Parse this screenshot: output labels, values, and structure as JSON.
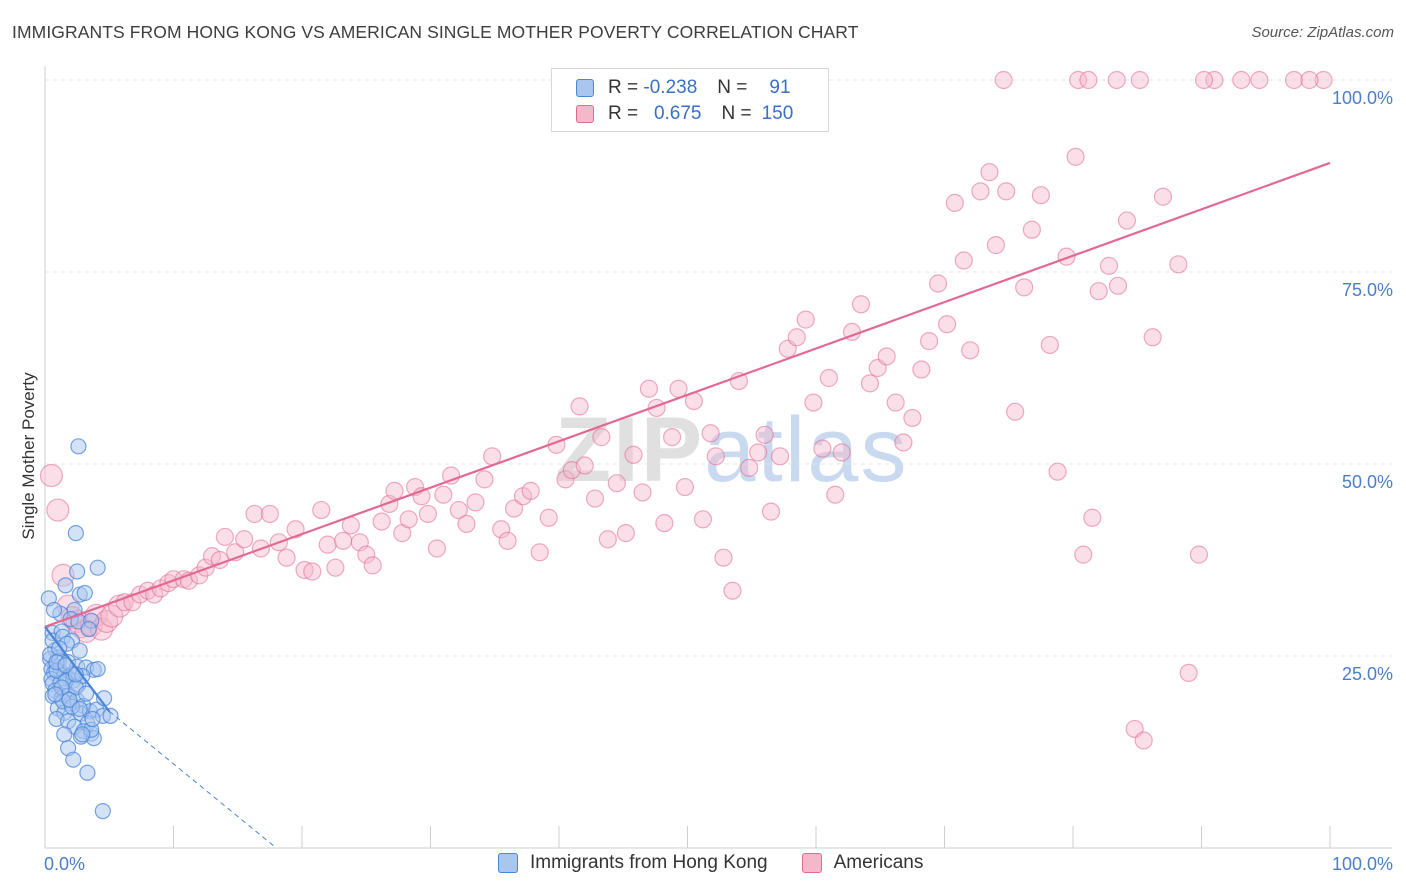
{
  "header": {
    "title": "IMMIGRANTS FROM HONG KONG VS AMERICAN SINGLE MOTHER POVERTY CORRELATION CHART",
    "source": "Source: ZipAtlas.com"
  },
  "watermark": {
    "zip": "ZIP",
    "atlas": "atlas"
  },
  "legend": {
    "rows": [
      {
        "r_label": "R =",
        "r_value": "-0.238",
        "n_label": "N =",
        "n_value": "91"
      },
      {
        "r_label": "R =",
        "r_value": "0.675",
        "n_label": "N =",
        "n_value": "150"
      }
    ]
  },
  "bottom_legend": [
    "Immigrants from Hong Kong",
    "Americans"
  ],
  "colors": {
    "blue": "#4a85d8",
    "blue_fill": "#a9c6ef",
    "pink": "#e26a92",
    "pink_fill": "#f5b8cb",
    "grid": "#e4e4e4",
    "tick_text": "#4a7ec9"
  },
  "chart_data": {
    "type": "scatter",
    "title": "IMMIGRANTS FROM HONG KONG VS AMERICAN SINGLE MOTHER POVERTY CORRELATION CHART",
    "xlabel": "",
    "ylabel": "Single Mother Poverty",
    "xlim": [
      0,
      100
    ],
    "ylim": [
      0,
      100
    ],
    "x_tick_labels": [
      "0.0%",
      "100.0%"
    ],
    "y_tick_labels": [
      "25.0%",
      "50.0%",
      "75.0%",
      "100.0%"
    ],
    "y_ticks": [
      25,
      50,
      75,
      100
    ],
    "grid": "horizontal dashed",
    "legend_position": "top-center",
    "series": [
      {
        "name": "Immigrants from Hong Kong",
        "r": -0.238,
        "n": 91,
        "trend": {
          "x": [
            0,
            5
          ],
          "y": [
            28.8,
            17.8
          ],
          "extended_to": [
            18,
            0
          ]
        },
        "points": [
          [
            0.3,
            32.5
          ],
          [
            0.6,
            28
          ],
          [
            0.8,
            25.8
          ],
          [
            1,
            24.8
          ],
          [
            0.4,
            24.6
          ],
          [
            0.8,
            23.6
          ],
          [
            0.5,
            23.3
          ],
          [
            1.2,
            23
          ],
          [
            0.7,
            22.8
          ],
          [
            1.5,
            22.5
          ],
          [
            1.8,
            22.2
          ],
          [
            0.5,
            22
          ],
          [
            0.6,
            21.4
          ],
          [
            1.2,
            21.5
          ],
          [
            2.2,
            21.8
          ],
          [
            2.6,
            21.3
          ],
          [
            0.8,
            20.5
          ],
          [
            1.5,
            20.2
          ],
          [
            0.6,
            19.8
          ],
          [
            1.3,
            19.5
          ],
          [
            1.8,
            19.8
          ],
          [
            2,
            18.8
          ],
          [
            2.5,
            19.2
          ],
          [
            3,
            18.5
          ],
          [
            1,
            18.2
          ],
          [
            1.5,
            17.6
          ],
          [
            2.8,
            17.5
          ],
          [
            3.5,
            17.8
          ],
          [
            4,
            18
          ],
          [
            0.9,
            16.8
          ],
          [
            1.8,
            16.5
          ],
          [
            3.3,
            16.2
          ],
          [
            4.5,
            17.2
          ],
          [
            2.3,
            15.8
          ],
          [
            3,
            15.2
          ],
          [
            3.6,
            14.9
          ],
          [
            2.8,
            14.5
          ],
          [
            3.8,
            14.3
          ],
          [
            1.5,
            14.8
          ],
          [
            1.8,
            13
          ],
          [
            2.2,
            11.5
          ],
          [
            3.3,
            9.8
          ],
          [
            4.5,
            4.8
          ],
          [
            2.5,
            36
          ],
          [
            4.1,
            36.5
          ],
          [
            2.7,
            33
          ],
          [
            3.1,
            33.2
          ],
          [
            1.6,
            34.2
          ],
          [
            2.3,
            31
          ],
          [
            1.2,
            30.5
          ],
          [
            2,
            29.8
          ],
          [
            2.6,
            29.5
          ],
          [
            3.6,
            29.6
          ],
          [
            3.4,
            28.5
          ],
          [
            1.3,
            28.2
          ],
          [
            0.6,
            27
          ],
          [
            1.4,
            27.5
          ],
          [
            2.1,
            27
          ],
          [
            1.7,
            26.6
          ],
          [
            2.7,
            25.7
          ],
          [
            0.4,
            25.2
          ],
          [
            1.1,
            24.4
          ],
          [
            1.8,
            24.2
          ],
          [
            2.5,
            23.6
          ],
          [
            3.2,
            23.5
          ],
          [
            3.8,
            23.2
          ],
          [
            4.1,
            23.3
          ],
          [
            0.9,
            23.1
          ],
          [
            2.2,
            22.7
          ],
          [
            2.9,
            22.4
          ],
          [
            1.6,
            21.7
          ],
          [
            2.4,
            20.9
          ],
          [
            3.2,
            20.1
          ],
          [
            4.6,
            19.5
          ],
          [
            5.1,
            17.2
          ],
          [
            1.4,
            19.1
          ],
          [
            2.1,
            18.4
          ],
          [
            3.6,
            15.4
          ],
          [
            2.4,
            41
          ],
          [
            2.6,
            52.3
          ],
          [
            0.7,
            31
          ],
          [
            1.1,
            26
          ],
          [
            0.9,
            24.2
          ],
          [
            1.6,
            23.8
          ],
          [
            2.4,
            22.6
          ],
          [
            1.3,
            20.9
          ],
          [
            0.8,
            20
          ],
          [
            1.9,
            19.3
          ],
          [
            2.7,
            18.1
          ],
          [
            3.7,
            16.8
          ],
          [
            2.9,
            14.8
          ]
        ]
      },
      {
        "name": "Americans",
        "r": 0.675,
        "n": 150,
        "trend": {
          "x": [
            0,
            100
          ],
          "y": [
            28.8,
            89.2
          ]
        },
        "points": [
          [
            0.5,
            48.5
          ],
          [
            1,
            44
          ],
          [
            1.4,
            35.5
          ],
          [
            1.8,
            31.5
          ],
          [
            2.1,
            30
          ],
          [
            2.5,
            29.5
          ],
          [
            2.8,
            28.8
          ],
          [
            3.2,
            28.2
          ],
          [
            3.6,
            29
          ],
          [
            4,
            30.3
          ],
          [
            4.4,
            28.5
          ],
          [
            4.8,
            29.5
          ],
          [
            5.2,
            30.2
          ],
          [
            5.8,
            31.5
          ],
          [
            6.2,
            32
          ],
          [
            6.8,
            32
          ],
          [
            7.4,
            33
          ],
          [
            8,
            33.5
          ],
          [
            8.5,
            33
          ],
          [
            9,
            33.8
          ],
          [
            9.6,
            34.5
          ],
          [
            10,
            35
          ],
          [
            10.8,
            35
          ],
          [
            11.2,
            34.8
          ],
          [
            12,
            35.5
          ],
          [
            12.5,
            36.5
          ],
          [
            13,
            38
          ],
          [
            13.6,
            37.5
          ],
          [
            14,
            40.5
          ],
          [
            14.8,
            38.5
          ],
          [
            15.5,
            40.2
          ],
          [
            16.3,
            43.5
          ],
          [
            16.8,
            39
          ],
          [
            17.5,
            43.5
          ],
          [
            18.2,
            39.8
          ],
          [
            18.8,
            37.8
          ],
          [
            19.5,
            41.5
          ],
          [
            20.2,
            36.2
          ],
          [
            20.8,
            36
          ],
          [
            21.5,
            44
          ],
          [
            22,
            39.5
          ],
          [
            22.6,
            36.5
          ],
          [
            23.2,
            40
          ],
          [
            23.8,
            42
          ],
          [
            24.5,
            39.8
          ],
          [
            25,
            38.2
          ],
          [
            25.5,
            36.8
          ],
          [
            26.2,
            42.5
          ],
          [
            26.8,
            44.8
          ],
          [
            27.2,
            46.5
          ],
          [
            27.8,
            41
          ],
          [
            28.3,
            42.8
          ],
          [
            28.8,
            47
          ],
          [
            29.3,
            45.8
          ],
          [
            29.8,
            43.5
          ],
          [
            30.5,
            39
          ],
          [
            31,
            46
          ],
          [
            31.6,
            48.5
          ],
          [
            32.2,
            44
          ],
          [
            32.8,
            42.2
          ],
          [
            33.5,
            45
          ],
          [
            34.2,
            48
          ],
          [
            34.8,
            51
          ],
          [
            35.5,
            41.5
          ],
          [
            36,
            40
          ],
          [
            36.5,
            44.2
          ],
          [
            37.2,
            45.8
          ],
          [
            37.8,
            46.5
          ],
          [
            38.5,
            38.5
          ],
          [
            39.2,
            43
          ],
          [
            39.8,
            52.5
          ],
          [
            40.5,
            48
          ],
          [
            41,
            49.2
          ],
          [
            41.6,
            57.5
          ],
          [
            42,
            49.8
          ],
          [
            42.8,
            45.5
          ],
          [
            43.3,
            53.5
          ],
          [
            43.8,
            40.2
          ],
          [
            44.5,
            47.5
          ],
          [
            45.2,
            41
          ],
          [
            45.8,
            51.2
          ],
          [
            46.5,
            46.3
          ],
          [
            47,
            59.8
          ],
          [
            47.6,
            57.3
          ],
          [
            48.2,
            42.3
          ],
          [
            48.8,
            53.5
          ],
          [
            49.3,
            59.8
          ],
          [
            49.8,
            47
          ],
          [
            50.5,
            58.2
          ],
          [
            51.2,
            42.8
          ],
          [
            51.8,
            54
          ],
          [
            52.2,
            51
          ],
          [
            52.8,
            37.8
          ],
          [
            53.5,
            33.5
          ],
          [
            54,
            60.8
          ],
          [
            54.8,
            49.5
          ],
          [
            55.5,
            51.5
          ],
          [
            56,
            53.8
          ],
          [
            56.5,
            43.8
          ],
          [
            57.2,
            51
          ],
          [
            57.8,
            65
          ],
          [
            58.5,
            66.5
          ],
          [
            59.2,
            68.8
          ],
          [
            59.8,
            58
          ],
          [
            60.5,
            52
          ],
          [
            61,
            61.2
          ],
          [
            61.5,
            46
          ],
          [
            62,
            51.5
          ],
          [
            62.8,
            67.2
          ],
          [
            63.5,
            70.8
          ],
          [
            64.2,
            60.5
          ],
          [
            64.8,
            62.5
          ],
          [
            65.5,
            64
          ],
          [
            66.2,
            58
          ],
          [
            66.8,
            52.8
          ],
          [
            67.5,
            56
          ],
          [
            68.2,
            62.3
          ],
          [
            68.8,
            66
          ],
          [
            69.5,
            73.5
          ],
          [
            70.2,
            68.2
          ],
          [
            70.8,
            84
          ],
          [
            71.5,
            76.5
          ],
          [
            72,
            64.8
          ],
          [
            72.8,
            85.5
          ],
          [
            73.5,
            88
          ],
          [
            74,
            78.5
          ],
          [
            74.8,
            85.5
          ],
          [
            75.5,
            56.8
          ],
          [
            76.2,
            73
          ],
          [
            76.8,
            80.5
          ],
          [
            77.5,
            85
          ],
          [
            78.2,
            65.5
          ],
          [
            78.8,
            49
          ],
          [
            79.5,
            77
          ],
          [
            80.2,
            90
          ],
          [
            80.8,
            38.2
          ],
          [
            81.5,
            43
          ],
          [
            82,
            72.5
          ],
          [
            82.8,
            75.8
          ],
          [
            83.5,
            73.2
          ],
          [
            84.2,
            81.7
          ],
          [
            84.8,
            15.5
          ],
          [
            85.5,
            14
          ],
          [
            86.2,
            66.5
          ],
          [
            87,
            84.8
          ],
          [
            88.2,
            76
          ],
          [
            89,
            22.8
          ],
          [
            89.8,
            38.2
          ],
          [
            91,
            100
          ],
          [
            74.6,
            100
          ],
          [
            80.4,
            100
          ],
          [
            81.2,
            100
          ],
          [
            85.2,
            100
          ],
          [
            90.2,
            100
          ],
          [
            94.5,
            100
          ],
          [
            97.2,
            100
          ],
          [
            99.5,
            100
          ],
          [
            93.1,
            100
          ],
          [
            98.4,
            100
          ],
          [
            83.4,
            100
          ]
        ]
      }
    ]
  }
}
